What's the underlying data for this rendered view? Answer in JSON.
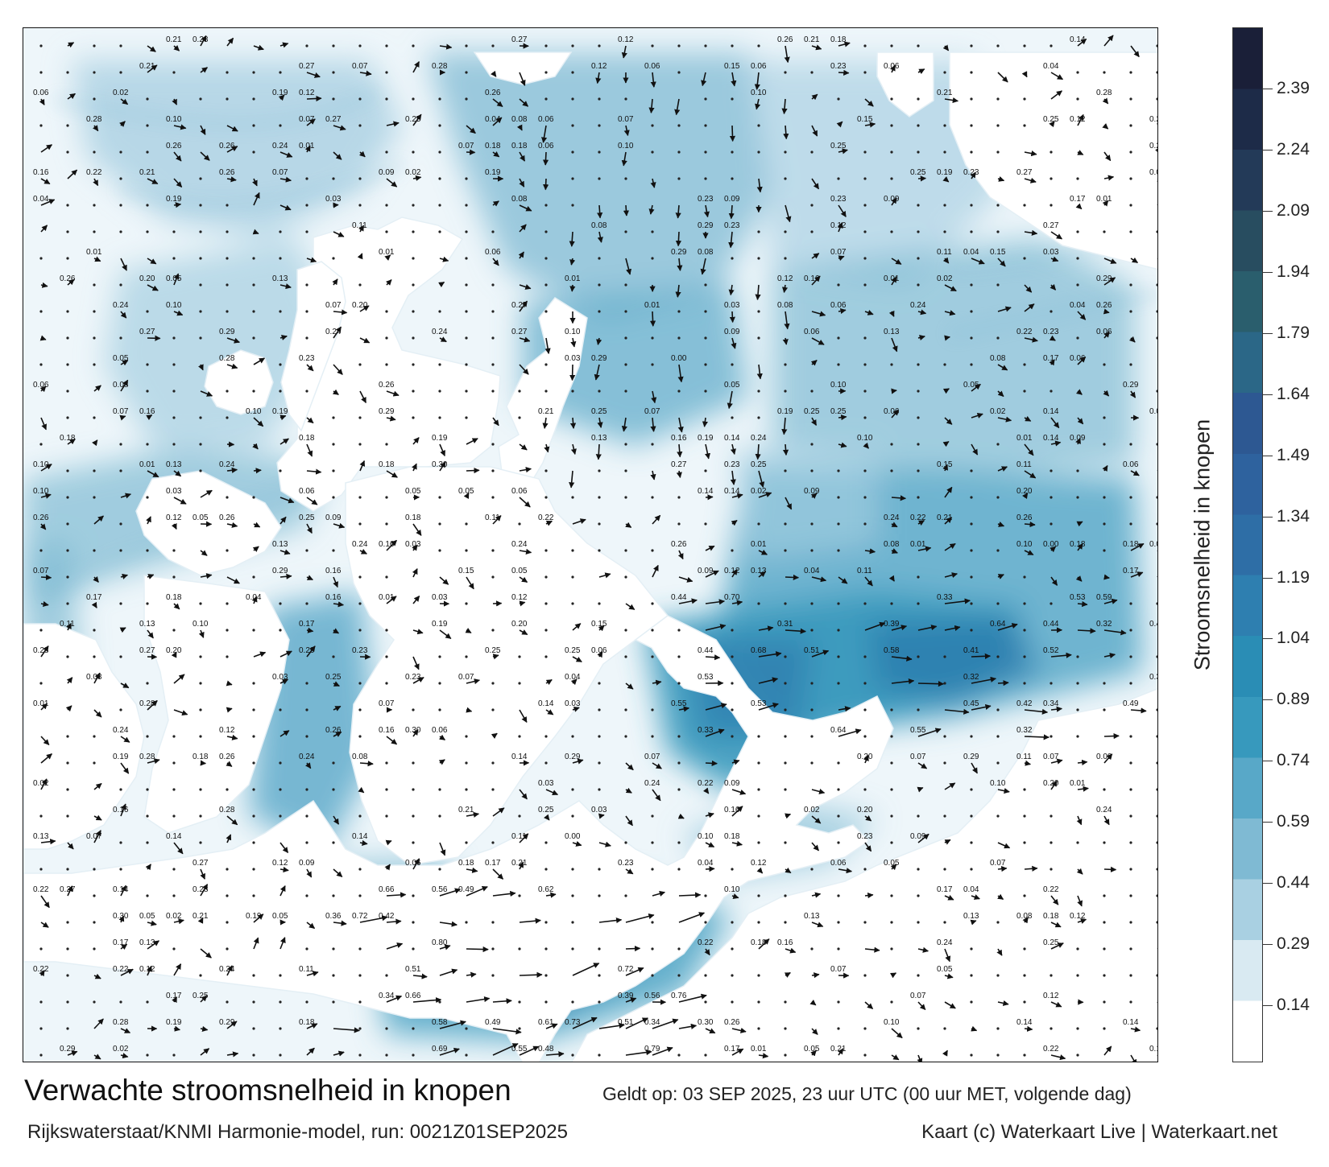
{
  "map": {
    "region": "North Sea coast of the Netherlands and Wadden Sea",
    "vector_field": "current direction arrows",
    "value_labels": "current speed in knots at grid points",
    "colors": {
      "land": "#ffffff",
      "water_low": "#eef6fa",
      "water_mid": "#7fbad3",
      "water_high": "#2f84ab",
      "water_max": "#1b4f7e",
      "arrow": "#111111"
    }
  },
  "legend": {
    "title": "Stroomsnelheid in knopen",
    "ticks": [
      "0.14",
      "0.29",
      "0.44",
      "0.59",
      "0.74",
      "0.89",
      "1.04",
      "1.19",
      "1.34",
      "1.49",
      "1.64",
      "1.79",
      "1.94",
      "2.09",
      "2.24",
      "2.39"
    ],
    "range": [
      0,
      2.54
    ],
    "colors": [
      "#ffffff",
      "#d9eaf2",
      "#a9d0e2",
      "#7fbad3",
      "#58a8c8",
      "#3799bd",
      "#2a8db5",
      "#2e7fb0",
      "#2e6ea6",
      "#2e629e",
      "#2d5892",
      "#2b6787",
      "#2a5e6d",
      "#284d60",
      "#233a58",
      "#1d2b48",
      "#1a1f38"
    ]
  },
  "footer": {
    "title": "Verwachte stroomsnelheid in knopen",
    "valid_time": "Geldt op: 03 SEP 2025, 23 uur UTC (00 uur MET, volgende dag)",
    "model_run": "Rijkswaterstaat/KNMI Harmonie-model, run: 0021Z01SEP2025",
    "credit": "Kaart (c) Waterkaart Live | Waterkaart.net"
  }
}
